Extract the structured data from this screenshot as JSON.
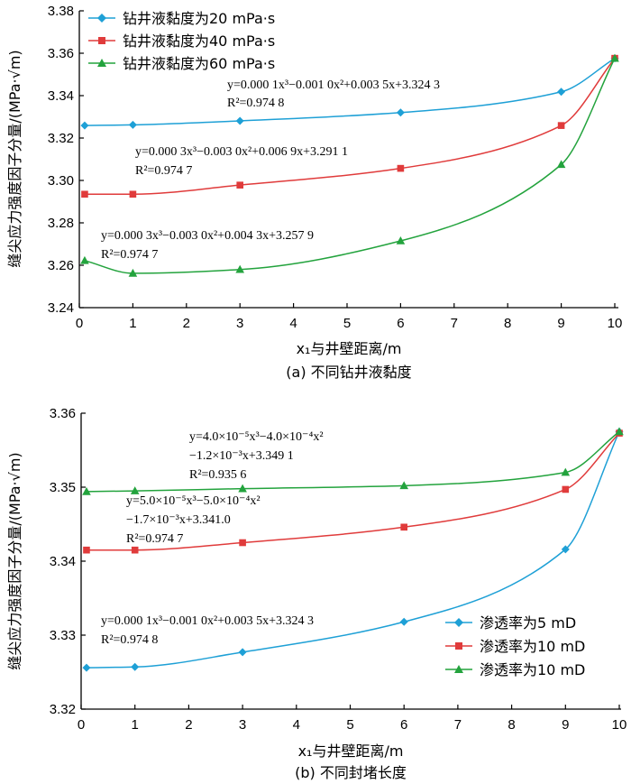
{
  "chart_data": [
    {
      "type": "line",
      "caption": "(a) 不同钻井液黏度",
      "xlabel": "x₁与井壁距离/m",
      "ylabel": "缝尖应力强度因子分量/(MPa·√m)",
      "xlim": [
        0,
        10
      ],
      "ylim": [
        3.24,
        3.38
      ],
      "xticks": [
        "0",
        "1",
        "2",
        "3",
        "4",
        "5",
        "6",
        "7",
        "8",
        "9",
        "10"
      ],
      "yticks": [
        "3.24",
        "3.26",
        "3.28",
        "3.30",
        "3.32",
        "3.34",
        "3.36",
        "3.38"
      ],
      "grid": false,
      "legend_position": "top-left",
      "series": [
        {
          "name": "钻井液黏度为20 mPa·s",
          "color": "#1ea0d6",
          "marker": "diamond",
          "points": [
            [
              0.1,
              3.3259
            ],
            [
              1,
              3.3262
            ],
            [
              3,
              3.3281
            ],
            [
              6,
              3.332
            ],
            [
              9,
              3.3418
            ],
            [
              10,
              3.3576
            ]
          ],
          "equation": "y=0.000 1x³−0.001 0x²+0.003 5x+3.324 3",
          "r2": "R²=0.974 8"
        },
        {
          "name": "钻井液黏度为40 mPa·s",
          "color": "#e03b3b",
          "marker": "square",
          "points": [
            [
              0.1,
              3.2935
            ],
            [
              1,
              3.2935
            ],
            [
              3,
              3.2978
            ],
            [
              6,
              3.3057
            ],
            [
              9,
              3.3259
            ],
            [
              10,
              3.3576
            ]
          ],
          "equation": "y=0.000 3x³−0.003 0x²+0.006 9x+3.291 1",
          "r2": "R²=0.974 7"
        },
        {
          "name": "钻井液黏度为60 mPa·s",
          "color": "#23a33d",
          "marker": "triangle",
          "points": [
            [
              0.1,
              3.2622
            ],
            [
              1,
              3.2562
            ],
            [
              3,
              3.258
            ],
            [
              6,
              3.2715
            ],
            [
              9,
              3.3075
            ],
            [
              10,
              3.3576
            ]
          ],
          "equation": "y=0.000 3x³−0.003 0x²+0.004 3x+3.257 9",
          "r2": "R²=0.974 7"
        }
      ]
    },
    {
      "type": "line",
      "caption": "(b) 不同封堵长度",
      "xlabel": "x₁与井壁距离/m",
      "ylabel": "缝尖应力强度因子分量/(MPa·√m)",
      "xlim": [
        0,
        10
      ],
      "ylim": [
        3.32,
        3.36
      ],
      "xticks": [
        "0",
        "1",
        "2",
        "3",
        "4",
        "5",
        "6",
        "7",
        "8",
        "9",
        "10"
      ],
      "yticks": [
        "3.32",
        "3.33",
        "3.34",
        "3.35",
        "3.36"
      ],
      "grid": false,
      "legend_position": "bottom-right",
      "series": [
        {
          "name": "渗透率为5 mD",
          "color": "#1ea0d6",
          "marker": "diamond",
          "points": [
            [
              0.1,
              3.3256
            ],
            [
              1,
              3.3257
            ],
            [
              3,
              3.3277
            ],
            [
              6,
              3.3318
            ],
            [
              9,
              3.3416
            ],
            [
              10,
              3.3575
            ]
          ],
          "equation": "y=0.000 1x³−0.001 0x²+0.003 5x+3.324 3",
          "r2": "R²=0.974 8"
        },
        {
          "name": "渗透率为10 mD",
          "color": "#e03b3b",
          "marker": "square",
          "points": [
            [
              0.1,
              3.3415
            ],
            [
              1,
              3.3415
            ],
            [
              3,
              3.3425
            ],
            [
              6,
              3.3446
            ],
            [
              9,
              3.3497
            ],
            [
              10,
              3.3573
            ]
          ],
          "equation1": "y=5.0×10⁻⁵x³−5.0×10⁻⁴x²",
          "equation2": "−1.7×10⁻³x+3.341.0",
          "r2": "R²=0.974 7"
        },
        {
          "name": "渗透率为10 mD",
          "color": "#23a33d",
          "marker": "triangle",
          "points": [
            [
              0.1,
              3.3494
            ],
            [
              1,
              3.3495
            ],
            [
              3,
              3.3498
            ],
            [
              6,
              3.3502
            ],
            [
              9,
              3.352
            ],
            [
              10,
              3.3575
            ]
          ],
          "equation1": "y=4.0×10⁻⁵x³−4.0×10⁻⁴x²",
          "equation2": "−1.2×10⁻³x+3.349 1",
          "r2": "R²=0.935 6"
        }
      ]
    }
  ]
}
